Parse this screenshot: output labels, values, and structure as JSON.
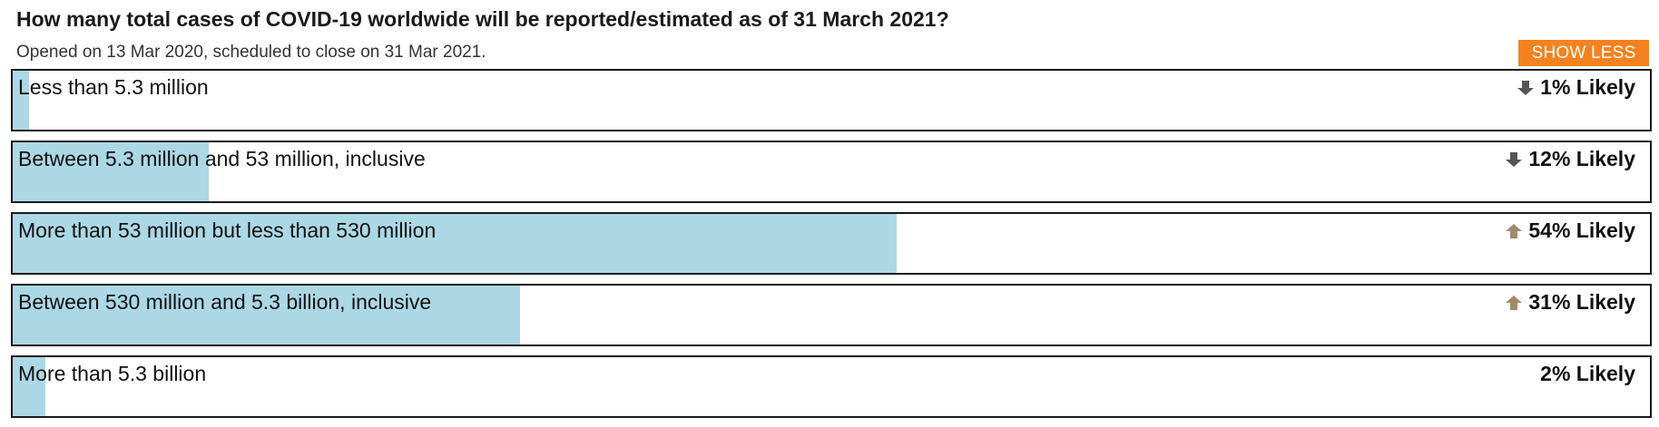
{
  "question": {
    "title": "How many total cases of COVID-19 worldwide will be reported/estimated as of 31 March 2021?",
    "meta": "Opened on 13 Mar 2020, scheduled to close on 31 Mar 2021.",
    "show_less_label": "SHOW LESS"
  },
  "colors": {
    "accent": "#f58220",
    "bar_fill": "#acd8e5",
    "trend_down": "#555555",
    "trend_up": "#a08a6a"
  },
  "options": [
    {
      "label": "Less than 5.3 million",
      "probability": "1% Likely",
      "fill_fraction": 0.01,
      "trend": "down",
      "trend_icon": "arrow-down-icon"
    },
    {
      "label": "Between 5.3 million and 53 million, inclusive",
      "probability": "12% Likely",
      "fill_fraction": 0.12,
      "trend": "down",
      "trend_icon": "arrow-down-icon"
    },
    {
      "label": "More than 53 million but less than 530 million",
      "probability": "54% Likely",
      "fill_fraction": 0.54,
      "trend": "up",
      "trend_icon": "arrow-up-icon"
    },
    {
      "label": "Between 530 million and 5.3 billion, inclusive",
      "probability": "31% Likely",
      "fill_fraction": 0.31,
      "trend": "up",
      "trend_icon": "arrow-up-icon"
    },
    {
      "label": "More than 5.3 billion",
      "probability": "2% Likely",
      "fill_fraction": 0.02,
      "trend": "none",
      "trend_icon": ""
    }
  ]
}
